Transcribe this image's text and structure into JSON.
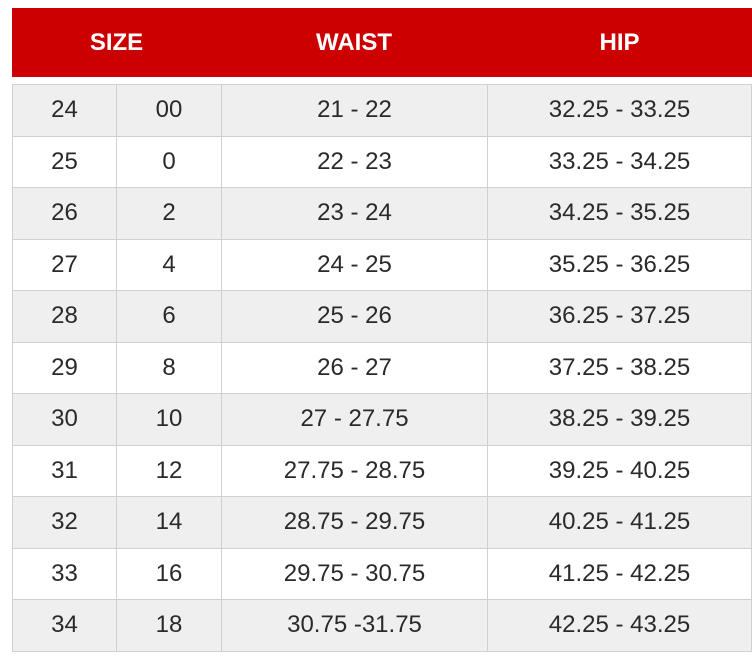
{
  "header": {
    "size": "SIZE",
    "waist": "WAIST",
    "hip": "HIP"
  },
  "rows": [
    [
      "24",
      "00",
      "21 - 22",
      "32.25 - 33.25"
    ],
    [
      "25",
      "0",
      "22 - 23",
      "33.25 - 34.25"
    ],
    [
      "26",
      "2",
      "23 - 24",
      "34.25 - 35.25"
    ],
    [
      "27",
      "4",
      "24 - 25",
      "35.25 - 36.25"
    ],
    [
      "28",
      "6",
      "25 - 26",
      "36.25 - 37.25"
    ],
    [
      "29",
      "8",
      "26 - 27",
      "37.25 - 38.25"
    ],
    [
      "30",
      "10",
      "27 - 27.75",
      "38.25 - 39.25"
    ],
    [
      "31",
      "12",
      "27.75 - 28.75",
      "39.25 - 40.25"
    ],
    [
      "32",
      "14",
      "28.75 - 29.75",
      "40.25 - 41.25"
    ],
    [
      "33",
      "16",
      "29.75 - 30.75",
      "41.25 - 42.25"
    ],
    [
      "34",
      "18",
      "30.75 -31.75",
      "42.25 - 43.25"
    ]
  ],
  "colors": {
    "header_bg": "#cc0000",
    "stripe": "#efefef"
  }
}
